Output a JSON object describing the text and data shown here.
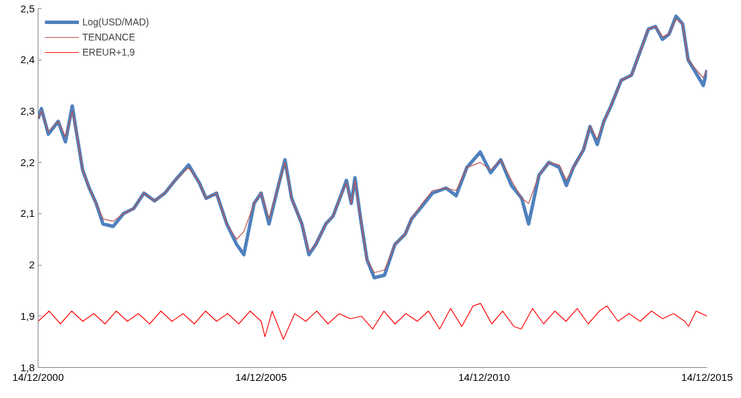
{
  "chart_data": {
    "type": "line",
    "x": [
      "2000-12-14",
      "2001-01-10",
      "2001-03-08",
      "2001-05-28",
      "2001-07-26",
      "2001-09-20",
      "2001-10-20",
      "2001-12-14",
      "2002-02-06",
      "2002-04-04",
      "2002-05-29",
      "2002-08-21",
      "2002-11-13",
      "2003-02-05",
      "2003-04-30",
      "2003-07-26",
      "2003-10-18",
      "2004-01-10",
      "2004-04-30",
      "2004-07-26",
      "2004-09-20",
      "2004-12-14",
      "2005-03-08",
      "2005-05-28",
      "2005-07-26",
      "2005-10-18",
      "2005-12-14",
      "2006-02-17",
      "2006-04-30",
      "2006-06-28",
      "2006-08-21",
      "2006-11-13",
      "2007-01-10",
      "2007-03-08",
      "2007-05-28",
      "2007-07-26",
      "2007-09-20",
      "2007-11-13",
      "2007-12-23",
      "2008-01-22",
      "2008-03-08",
      "2008-04-30",
      "2008-06-28",
      "2008-09-20",
      "2008-12-14",
      "2009-03-08",
      "2009-04-30",
      "2009-07-26",
      "2009-10-18",
      "2010-02-06",
      "2010-04-30",
      "2010-07-26",
      "2010-11-13",
      "2011-02-06",
      "2011-04-30",
      "2011-07-26",
      "2011-10-18",
      "2011-12-14",
      "2012-03-08",
      "2012-05-28",
      "2012-08-21",
      "2012-10-18",
      "2012-12-14",
      "2013-03-08",
      "2013-04-30",
      "2013-06-28",
      "2013-08-21",
      "2013-10-18",
      "2014-01-10",
      "2014-04-04",
      "2014-05-28",
      "2014-08-21",
      "2014-10-18",
      "2014-12-14",
      "2015-02-06",
      "2015-04-04",
      "2015-05-28",
      "2015-07-12",
      "2015-09-01",
      "2015-11-13",
      "2015-12-14"
    ],
    "series": [
      {
        "name": "Log(USD/MAD)",
        "color": "#4f81bd",
        "values": [
          2.285,
          2.305,
          2.255,
          2.28,
          2.24,
          2.31,
          2.265,
          2.185,
          2.15,
          2.12,
          2.08,
          2.075,
          2.1,
          2.11,
          2.14,
          2.125,
          2.14,
          2.165,
          2.195,
          2.16,
          2.13,
          2.14,
          2.08,
          2.04,
          2.02,
          2.12,
          2.14,
          2.08,
          2.15,
          2.205,
          2.13,
          2.08,
          2.02,
          2.04,
          2.08,
          2.095,
          2.13,
          2.165,
          2.12,
          2.17,
          2.09,
          2.01,
          1.975,
          1.98,
          2.04,
          2.06,
          2.09,
          2.115,
          2.14,
          2.15,
          2.135,
          2.19,
          2.22,
          2.18,
          2.205,
          2.155,
          2.13,
          2.08,
          2.175,
          2.2,
          2.19,
          2.155,
          2.19,
          2.225,
          2.27,
          2.235,
          2.28,
          2.31,
          2.36,
          2.37,
          2.405,
          2.46,
          2.465,
          2.44,
          2.45,
          2.485,
          2.47,
          2.4,
          2.38,
          2.35,
          2.38
        ]
      },
      {
        "name": "TENDANCE",
        "color": "#c0504d",
        "values": [
          2.285,
          2.3,
          2.26,
          2.28,
          2.25,
          2.3,
          2.265,
          2.185,
          2.15,
          2.12,
          2.09,
          2.085,
          2.1,
          2.11,
          2.14,
          2.125,
          2.14,
          2.165,
          2.19,
          2.16,
          2.13,
          2.14,
          2.08,
          2.05,
          2.065,
          2.12,
          2.14,
          2.09,
          2.15,
          2.2,
          2.13,
          2.08,
          2.025,
          2.04,
          2.08,
          2.095,
          2.13,
          2.16,
          2.12,
          2.165,
          2.09,
          2.01,
          1.985,
          1.99,
          2.04,
          2.06,
          2.09,
          2.12,
          2.145,
          2.15,
          2.145,
          2.19,
          2.2,
          2.185,
          2.205,
          2.165,
          2.13,
          2.12,
          2.175,
          2.2,
          2.195,
          2.165,
          2.19,
          2.225,
          2.27,
          2.245,
          2.28,
          2.31,
          2.36,
          2.37,
          2.405,
          2.46,
          2.465,
          2.445,
          2.45,
          2.48,
          2.47,
          2.4,
          2.385,
          2.365,
          2.38
        ]
      },
      {
        "name": "EREUR+1,9",
        "color": "#ff0000",
        "x": [
          "2000-12-14",
          "2001-03-15",
          "2001-06-15",
          "2001-09-15",
          "2001-12-15",
          "2002-03-15",
          "2002-06-15",
          "2002-09-15",
          "2002-12-15",
          "2003-03-15",
          "2003-06-15",
          "2003-09-15",
          "2003-12-15",
          "2004-03-15",
          "2004-06-15",
          "2004-09-15",
          "2004-12-15",
          "2005-03-15",
          "2005-06-15",
          "2005-09-15",
          "2005-12-15",
          "2006-01-15",
          "2006-03-15",
          "2006-06-15",
          "2006-09-15",
          "2006-12-15",
          "2007-03-15",
          "2007-06-15",
          "2007-09-15",
          "2007-12-15",
          "2008-03-15",
          "2008-06-15",
          "2008-09-15",
          "2008-12-15",
          "2009-03-15",
          "2009-06-15",
          "2009-09-15",
          "2009-12-15",
          "2010-03-15",
          "2010-06-15",
          "2010-09-15",
          "2010-11-15",
          "2011-02-15",
          "2011-05-15",
          "2011-08-15",
          "2011-10-15",
          "2012-01-15",
          "2012-04-15",
          "2012-07-15",
          "2012-10-15",
          "2013-01-15",
          "2013-04-15",
          "2013-07-15",
          "2013-09-15",
          "2013-12-15",
          "2014-03-15",
          "2014-06-15",
          "2014-09-15",
          "2014-12-15",
          "2015-03-15",
          "2015-06-15",
          "2015-07-15",
          "2015-09-15",
          "2015-12-14"
        ],
        "values": [
          1.89,
          1.91,
          1.885,
          1.91,
          1.89,
          1.905,
          1.885,
          1.91,
          1.89,
          1.905,
          1.885,
          1.91,
          1.89,
          1.905,
          1.885,
          1.91,
          1.89,
          1.905,
          1.885,
          1.91,
          1.89,
          1.86,
          1.91,
          1.855,
          1.905,
          1.89,
          1.91,
          1.885,
          1.905,
          1.895,
          1.9,
          1.875,
          1.91,
          1.885,
          1.905,
          1.89,
          1.91,
          1.875,
          1.915,
          1.88,
          1.92,
          1.925,
          1.885,
          1.91,
          1.88,
          1.875,
          1.915,
          1.885,
          1.91,
          1.89,
          1.915,
          1.885,
          1.91,
          1.92,
          1.89,
          1.905,
          1.89,
          1.91,
          1.895,
          1.905,
          1.89,
          1.88,
          1.91,
          1.9
        ]
      }
    ],
    "xlim": [
      "2000-12-14",
      "2015-12-14"
    ],
    "xticks": [
      {
        "value": "2000-12-14",
        "label": "14/12/2000"
      },
      {
        "value": "2005-12-14",
        "label": "14/12/2005"
      },
      {
        "value": "2010-12-14",
        "label": "14/12/2010"
      },
      {
        "value": "2015-12-14",
        "label": "14/12/2015"
      }
    ],
    "ylim": [
      1.8,
      2.5
    ],
    "yticks": [
      {
        "value": 1.8,
        "label": "1,8"
      },
      {
        "value": 1.9,
        "label": "1,9"
      },
      2,
      {
        "value": 2.1,
        "label": "2,1"
      },
      {
        "value": 2.2,
        "label": "2,2"
      },
      {
        "value": 2.3,
        "label": "2,3"
      },
      {
        "value": 2.4,
        "label": "2,4"
      },
      {
        "value": 2.5,
        "label": "2,5"
      }
    ],
    "legend": "top left",
    "line_style": "solid"
  }
}
